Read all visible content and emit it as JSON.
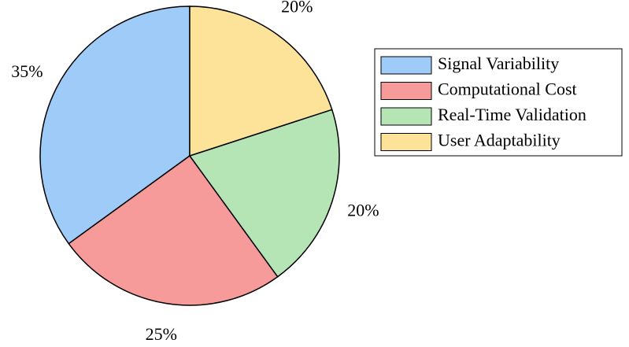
{
  "chart_data": {
    "type": "pie",
    "categories": [
      "Signal Variability",
      "Computational Cost",
      "Real-Time Validation",
      "User Adaptability"
    ],
    "values": [
      35,
      25,
      20,
      20
    ],
    "value_labels": [
      "35%",
      "25%",
      "20%",
      "20%"
    ],
    "colors": [
      "#9ecbf7",
      "#f79a9a",
      "#b5e5b5",
      "#fde29a"
    ],
    "legend": "right"
  }
}
